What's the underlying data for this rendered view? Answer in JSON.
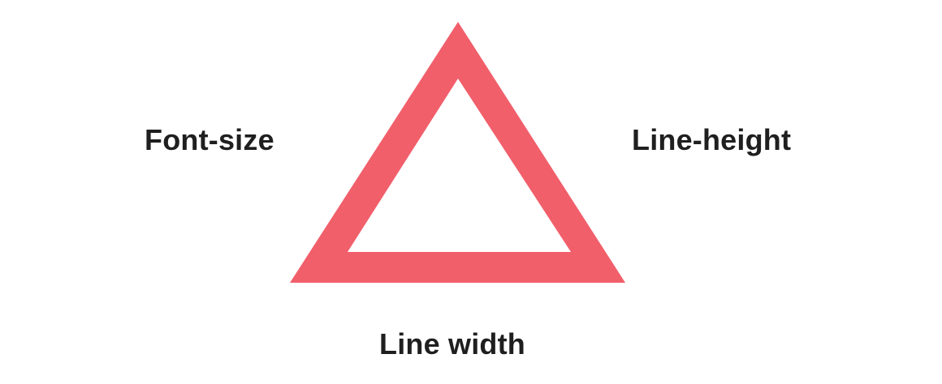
{
  "diagram": {
    "labels": {
      "left": "Font-size",
      "right": "Line-height",
      "bottom": "Line width"
    },
    "triangle": {
      "icon": "triangle-outline-icon",
      "stroke_color": "#f15f6b",
      "fill_color": "#ffffff"
    },
    "colors": {
      "text": "#1f1f1f",
      "background": "#ffffff"
    }
  }
}
